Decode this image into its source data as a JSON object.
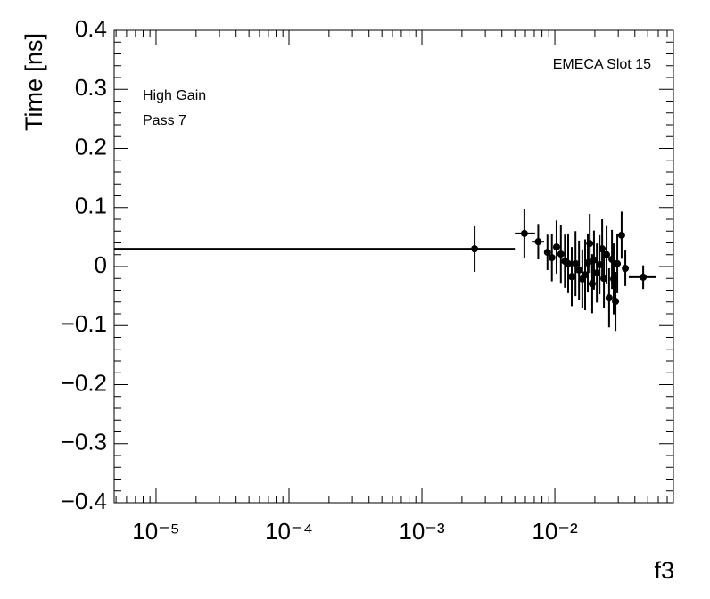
{
  "chart_data": {
    "type": "errorbar",
    "x_label": "f3",
    "y_label": "Time [ns]",
    "annotations": [
      "High Gain",
      "Pass 7",
      "EMECA Slot 15"
    ],
    "x_log": true,
    "xlim": [
      4.84e-06,
      0.078
    ],
    "ylim": [
      -0.4,
      0.4
    ],
    "xticks": [
      {
        "value": 1e-05,
        "label": "10⁻⁵"
      },
      {
        "value": 0.0001,
        "label": "10⁻⁴"
      },
      {
        "value": 0.001,
        "label": "10⁻³"
      },
      {
        "value": 0.01,
        "label": "10⁻²"
      }
    ],
    "yticks": [
      {
        "value": -0.4,
        "label": "−0.4"
      },
      {
        "value": -0.3,
        "label": "−0.3"
      },
      {
        "value": -0.2,
        "label": "−0.2"
      },
      {
        "value": -0.1,
        "label": "−0.1"
      },
      0,
      0.1,
      0.2,
      0.3,
      0.4
    ],
    "color": "#000000",
    "x": [
      0.00249,
      0.0059,
      0.0075,
      0.0088,
      0.0095,
      0.0103,
      0.0111,
      0.0119,
      0.0126,
      0.0134,
      0.0143,
      0.0152,
      0.0161,
      0.0169,
      0.0177,
      0.0183,
      0.0191,
      0.0197,
      0.0207,
      0.0217,
      0.0227,
      0.0234,
      0.0245,
      0.0256,
      0.0269,
      0.0277,
      0.0286,
      0.0295,
      0.0318,
      0.0339,
      0.0462
    ],
    "values": [
      0.03,
      0.056,
      0.042,
      0.024,
      0.015,
      0.033,
      0.021,
      0.009,
      0.005,
      -0.017,
      0.005,
      -0.006,
      -0.021,
      -0.014,
      0.006,
      0.039,
      -0.029,
      0.011,
      -0.011,
      0.003,
      0.03,
      -0.02,
      0.02,
      -0.053,
      0.012,
      -0.021,
      -0.059,
      0.005,
      0.053,
      -0.003,
      -0.018
    ],
    "errors": [
      0.039,
      0.042,
      0.03,
      0.03,
      0.04,
      0.045,
      0.05,
      0.045,
      0.05,
      0.05,
      0.055,
      0.05,
      0.05,
      0.06,
      0.05,
      0.05,
      0.05,
      0.05,
      0.05,
      0.05,
      0.05,
      0.05,
      0.05,
      0.05,
      0.05,
      0.06,
      0.05,
      0.05,
      0.04,
      0.03,
      0.02
    ],
    "x_low": [
      0,
      0.005,
      0.0068,
      null,
      null,
      null,
      null,
      null,
      null,
      null,
      null,
      null,
      null,
      null,
      null,
      null,
      null,
      null,
      null,
      null,
      null,
      null,
      null,
      null,
      null,
      null,
      null,
      null,
      null,
      null,
      0.036
    ],
    "x_high": [
      0.005,
      0.0071,
      0.0083,
      null,
      null,
      null,
      null,
      null,
      null,
      null,
      null,
      null,
      null,
      null,
      null,
      null,
      null,
      null,
      null,
      null,
      null,
      null,
      null,
      null,
      null,
      null,
      null,
      null,
      null,
      null,
      0.058
    ]
  }
}
